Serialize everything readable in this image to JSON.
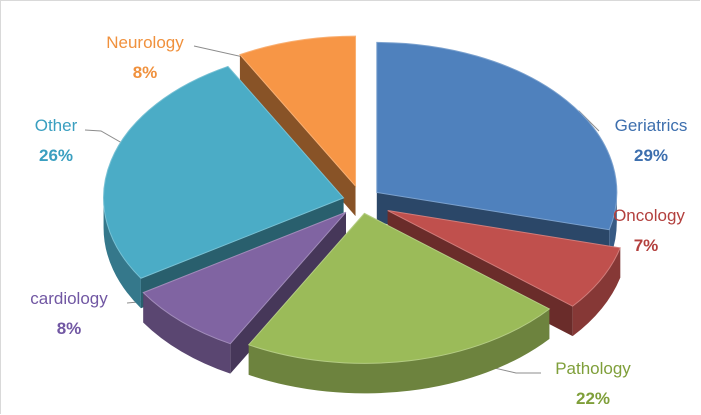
{
  "chart_data": {
    "type": "pie",
    "style": "3d-exploded",
    "title": "",
    "slices": [
      {
        "label": "Geriatrics",
        "value": 29,
        "pct_text": "29%",
        "color": "#4f81bd",
        "label_color": "#3d6fae"
      },
      {
        "label": "Oncology",
        "value": 7,
        "pct_text": "7%",
        "color": "#c0504d",
        "label_color": "#b3403e"
      },
      {
        "label": "Pathology",
        "value": 22,
        "pct_text": "22%",
        "color": "#9bbb59",
        "label_color": "#7f9f3a"
      },
      {
        "label": "cardiology",
        "value": 8,
        "pct_text": "8%",
        "color": "#8064a2",
        "label_color": "#7157a3"
      },
      {
        "label": "Other",
        "value": 26,
        "pct_text": "26%",
        "color": "#4bacc6",
        "label_color": "#3a9fc0"
      },
      {
        "label": "Neurology",
        "value": 8,
        "pct_text": "8%",
        "color": "#f79646",
        "label_color": "#f0913d"
      }
    ],
    "legend": "none",
    "data_labels": "outside-with-leader-lines"
  }
}
